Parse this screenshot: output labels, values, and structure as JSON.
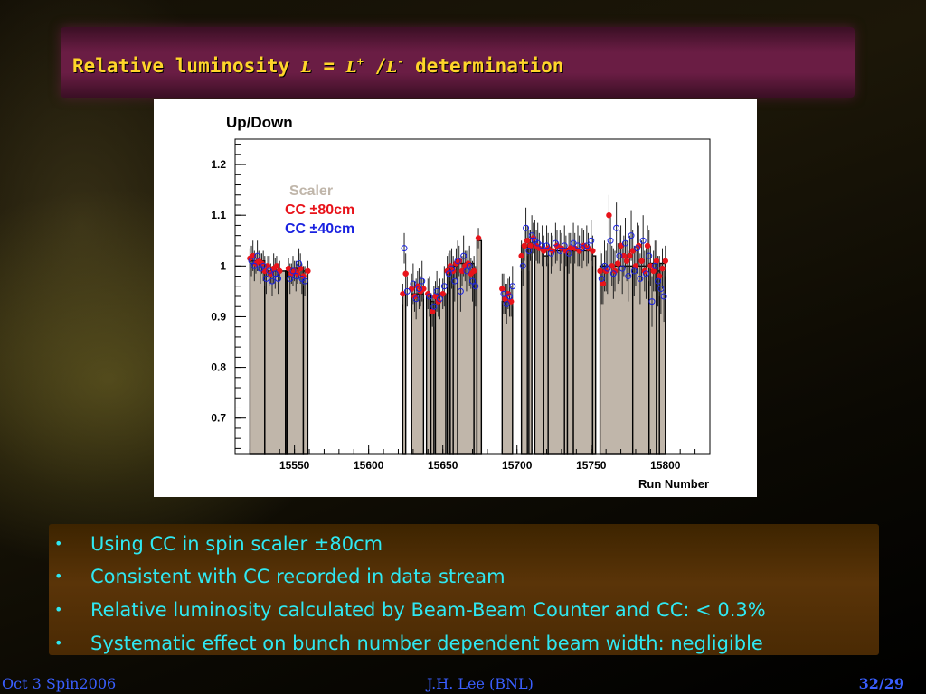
{
  "slide": {
    "title_text": "Relative luminosity ",
    "title_sym_L": "L",
    "title_eq": " = ",
    "title_sym_Lplus": "L",
    "title_plus_sup": "+",
    "title_slash": " /",
    "title_sym_Lminus": "L",
    "title_minus_sup": "-",
    "title_rest": " determination"
  },
  "bullets": [
    "Using CC in spin scaler ±80cm",
    "Consistent with CC recorded in data stream",
    "Relative luminosity calculated by Beam-Beam Counter and CC: < 0.3%",
    "Systematic effect on bunch number dependent beam width: negligible"
  ],
  "footer": {
    "left": "Oct 3 Spin2006",
    "center": "J.H. Lee (BNL)",
    "page": "32/29"
  },
  "colors": {
    "scaler": "#c0b6aa",
    "cc80": "#e8131a",
    "cc40": "#1a22e0"
  },
  "chart_data": {
    "type": "bar",
    "title": "Up/Down",
    "xlabel": "Run Number",
    "ylabel": "",
    "xlim": [
      15510,
      15830
    ],
    "ylim": [
      0.63,
      1.25
    ],
    "xticks": [
      15550,
      15600,
      15650,
      15700,
      15750,
      15800
    ],
    "yticks": [
      0.7,
      0.8,
      0.9,
      1.0,
      1.1,
      1.2
    ],
    "ytick_labels": [
      "0.7",
      "0.8",
      "0.9",
      "1",
      "1.1",
      "1.2"
    ],
    "legend": [
      {
        "label": "Scaler",
        "color": "#c0b6aa"
      },
      {
        "label": "CC ±80cm",
        "color": "#e8131a"
      },
      {
        "label": "CC ±40cm",
        "color": "#1a22e0"
      }
    ],
    "legend_position": "top-left",
    "scaler_bars": [
      {
        "x0": 15520,
        "x1": 15530,
        "value": 1.01
      },
      {
        "x0": 15530,
        "x1": 15544,
        "value": 0.99
      },
      {
        "x0": 15544,
        "x1": 15545,
        "value": 0.99
      },
      {
        "x0": 15545,
        "x1": 15556,
        "value": 0.995
      },
      {
        "x0": 15556,
        "x1": 15559,
        "value": 0.99
      },
      {
        "x0": 15623,
        "x1": 15625,
        "value": 0.945
      },
      {
        "x0": 15629,
        "x1": 15637,
        "value": 0.945
      },
      {
        "x0": 15639,
        "x1": 15642,
        "value": 0.945
      },
      {
        "x0": 15642,
        "x1": 15644,
        "value": 0.93
      },
      {
        "x0": 15645,
        "x1": 15652,
        "value": 0.945
      },
      {
        "x0": 15653,
        "x1": 15655,
        "value": 0.995
      },
      {
        "x0": 15655,
        "x1": 15657,
        "value": 1.0
      },
      {
        "x0": 15657,
        "x1": 15660,
        "value": 1.0
      },
      {
        "x0": 15660,
        "x1": 15671,
        "value": 1.005
      },
      {
        "x0": 15671,
        "x1": 15673,
        "value": 0.99
      },
      {
        "x0": 15673,
        "x1": 15676,
        "value": 1.05
      },
      {
        "x0": 15690,
        "x1": 15697,
        "value": 0.93
      },
      {
        "x0": 15703,
        "x1": 15707,
        "value": 1.04
      },
      {
        "x0": 15708,
        "x1": 15710,
        "value": 1.045
      },
      {
        "x0": 15712,
        "x1": 15718,
        "value": 1.035
      },
      {
        "x0": 15718,
        "x1": 15721,
        "value": 1.02
      },
      {
        "x0": 15721,
        "x1": 15732,
        "value": 1.03
      },
      {
        "x0": 15732,
        "x1": 15734,
        "value": 1.035
      },
      {
        "x0": 15734,
        "x1": 15738,
        "value": 1.03
      },
      {
        "x0": 15738,
        "x1": 15751,
        "value": 1.03
      },
      {
        "x0": 15751,
        "x1": 15753,
        "value": 1.02
      },
      {
        "x0": 15756,
        "x1": 15778,
        "value": 1.0
      },
      {
        "x0": 15778,
        "x1": 15789,
        "value": 1.0
      },
      {
        "x0": 15789,
        "x1": 15794,
        "value": 1.005
      },
      {
        "x0": 15794,
        "x1": 15796,
        "value": 0.99
      },
      {
        "x0": 15796,
        "x1": 15800,
        "value": 1.005
      }
    ],
    "cc_80cm": [
      {
        "x": 15520,
        "y": 1.015,
        "err": 0.02
      },
      {
        "x": 15522,
        "y": 1.02,
        "err": 0.03
      },
      {
        "x": 15524,
        "y": 1.005,
        "err": 0.02
      },
      {
        "x": 15526,
        "y": 1.01,
        "err": 0.02
      },
      {
        "x": 15528,
        "y": 1.005,
        "err": 0.02
      },
      {
        "x": 15530,
        "y": 0.99,
        "err": 0.03
      },
      {
        "x": 15532,
        "y": 1.0,
        "err": 0.02
      },
      {
        "x": 15534,
        "y": 0.985,
        "err": 0.02
      },
      {
        "x": 15536,
        "y": 0.995,
        "err": 0.03
      },
      {
        "x": 15538,
        "y": 1.0,
        "err": 0.02
      },
      {
        "x": 15540,
        "y": 0.99,
        "err": 0.02
      },
      {
        "x": 15546,
        "y": 0.995,
        "err": 0.02
      },
      {
        "x": 15548,
        "y": 0.985,
        "err": 0.02
      },
      {
        "x": 15550,
        "y": 0.99,
        "err": 0.02
      },
      {
        "x": 15552,
        "y": 0.985,
        "err": 0.02
      },
      {
        "x": 15554,
        "y": 0.995,
        "err": 0.03
      },
      {
        "x": 15556,
        "y": 0.98,
        "err": 0.02
      },
      {
        "x": 15559,
        "y": 0.99,
        "err": 0.02
      },
      {
        "x": 15623,
        "y": 0.945,
        "err": 0.02
      },
      {
        "x": 15625,
        "y": 0.985,
        "err": 0.04
      },
      {
        "x": 15629,
        "y": 0.955,
        "err": 0.03
      },
      {
        "x": 15631,
        "y": 0.94,
        "err": 0.03
      },
      {
        "x": 15633,
        "y": 0.96,
        "err": 0.03
      },
      {
        "x": 15635,
        "y": 0.95,
        "err": 0.03
      },
      {
        "x": 15637,
        "y": 0.955,
        "err": 0.02
      },
      {
        "x": 15640,
        "y": 0.945,
        "err": 0.03
      },
      {
        "x": 15643,
        "y": 0.91,
        "err": 0.03
      },
      {
        "x": 15645,
        "y": 0.94,
        "err": 0.03
      },
      {
        "x": 15647,
        "y": 0.93,
        "err": 0.03
      },
      {
        "x": 15650,
        "y": 0.945,
        "err": 0.03
      },
      {
        "x": 15653,
        "y": 0.99,
        "err": 0.03
      },
      {
        "x": 15655,
        "y": 1.0,
        "err": 0.03
      },
      {
        "x": 15657,
        "y": 0.99,
        "err": 0.03
      },
      {
        "x": 15659,
        "y": 1.005,
        "err": 0.03
      },
      {
        "x": 15661,
        "y": 1.01,
        "err": 0.03
      },
      {
        "x": 15663,
        "y": 0.99,
        "err": 0.03
      },
      {
        "x": 15665,
        "y": 1.0,
        "err": 0.03
      },
      {
        "x": 15667,
        "y": 1.005,
        "err": 0.03
      },
      {
        "x": 15669,
        "y": 0.985,
        "err": 0.03
      },
      {
        "x": 15671,
        "y": 0.99,
        "err": 0.03
      },
      {
        "x": 15674,
        "y": 1.055,
        "err": 0.02
      },
      {
        "x": 15690,
        "y": 0.955,
        "err": 0.03
      },
      {
        "x": 15692,
        "y": 0.935,
        "err": 0.03
      },
      {
        "x": 15694,
        "y": 0.945,
        "err": 0.03
      },
      {
        "x": 15696,
        "y": 0.93,
        "err": 0.03
      },
      {
        "x": 15703,
        "y": 1.02,
        "err": 0.03
      },
      {
        "x": 15705,
        "y": 1.04,
        "err": 0.03
      },
      {
        "x": 15707,
        "y": 1.05,
        "err": 0.03
      },
      {
        "x": 15709,
        "y": 1.04,
        "err": 0.03
      },
      {
        "x": 15711,
        "y": 1.055,
        "err": 0.03
      },
      {
        "x": 15713,
        "y": 1.04,
        "err": 0.03
      },
      {
        "x": 15715,
        "y": 1.035,
        "err": 0.03
      },
      {
        "x": 15718,
        "y": 1.03,
        "err": 0.03
      },
      {
        "x": 15721,
        "y": 1.035,
        "err": 0.03
      },
      {
        "x": 15724,
        "y": 1.03,
        "err": 0.03
      },
      {
        "x": 15727,
        "y": 1.04,
        "err": 0.03
      },
      {
        "x": 15730,
        "y": 1.035,
        "err": 0.03
      },
      {
        "x": 15733,
        "y": 1.03,
        "err": 0.03
      },
      {
        "x": 15736,
        "y": 1.035,
        "err": 0.03
      },
      {
        "x": 15739,
        "y": 1.035,
        "err": 0.03
      },
      {
        "x": 15742,
        "y": 1.03,
        "err": 0.03
      },
      {
        "x": 15745,
        "y": 1.04,
        "err": 0.03
      },
      {
        "x": 15748,
        "y": 1.035,
        "err": 0.03
      },
      {
        "x": 15751,
        "y": 1.03,
        "err": 0.03
      },
      {
        "x": 15756,
        "y": 0.99,
        "err": 0.04
      },
      {
        "x": 15758,
        "y": 0.965,
        "err": 0.04
      },
      {
        "x": 15760,
        "y": 0.99,
        "err": 0.04
      },
      {
        "x": 15762,
        "y": 1.1,
        "err": 0.04
      },
      {
        "x": 15764,
        "y": 1.0,
        "err": 0.04
      },
      {
        "x": 15766,
        "y": 0.99,
        "err": 0.04
      },
      {
        "x": 15768,
        "y": 1.005,
        "err": 0.04
      },
      {
        "x": 15770,
        "y": 1.04,
        "err": 0.04
      },
      {
        "x": 15772,
        "y": 1.02,
        "err": 0.04
      },
      {
        "x": 15774,
        "y": 1.01,
        "err": 0.04
      },
      {
        "x": 15776,
        "y": 1.02,
        "err": 0.04
      },
      {
        "x": 15778,
        "y": 1.03,
        "err": 0.04
      },
      {
        "x": 15780,
        "y": 1.0,
        "err": 0.04
      },
      {
        "x": 15782,
        "y": 1.04,
        "err": 0.04
      },
      {
        "x": 15784,
        "y": 1.01,
        "err": 0.04
      },
      {
        "x": 15786,
        "y": 0.99,
        "err": 0.04
      },
      {
        "x": 15788,
        "y": 1.04,
        "err": 0.04
      },
      {
        "x": 15790,
        "y": 1.0,
        "err": 0.04
      },
      {
        "x": 15792,
        "y": 0.99,
        "err": 0.04
      },
      {
        "x": 15794,
        "y": 1.01,
        "err": 0.04
      },
      {
        "x": 15796,
        "y": 0.98,
        "err": 0.04
      },
      {
        "x": 15798,
        "y": 0.995,
        "err": 0.04
      },
      {
        "x": 15800,
        "y": 1.01,
        "err": 0.03
      }
    ],
    "cc_40cm": [
      {
        "x": 15521,
        "y": 1.01,
        "err": 0.03
      },
      {
        "x": 15523,
        "y": 1.0,
        "err": 0.03
      },
      {
        "x": 15525,
        "y": 1.02,
        "err": 0.03
      },
      {
        "x": 15527,
        "y": 0.995,
        "err": 0.03
      },
      {
        "x": 15529,
        "y": 1.0,
        "err": 0.03
      },
      {
        "x": 15531,
        "y": 0.975,
        "err": 0.03
      },
      {
        "x": 15533,
        "y": 0.99,
        "err": 0.03
      },
      {
        "x": 15535,
        "y": 0.97,
        "err": 0.03
      },
      {
        "x": 15537,
        "y": 0.985,
        "err": 0.03
      },
      {
        "x": 15539,
        "y": 0.975,
        "err": 0.03
      },
      {
        "x": 15547,
        "y": 0.975,
        "err": 0.03
      },
      {
        "x": 15549,
        "y": 0.99,
        "err": 0.03
      },
      {
        "x": 15551,
        "y": 0.98,
        "err": 0.03
      },
      {
        "x": 15553,
        "y": 1.005,
        "err": 0.03
      },
      {
        "x": 15555,
        "y": 0.975,
        "err": 0.03
      },
      {
        "x": 15557,
        "y": 0.97,
        "err": 0.03
      },
      {
        "x": 15624,
        "y": 1.035,
        "err": 0.03
      },
      {
        "x": 15626,
        "y": 0.95,
        "err": 0.03
      },
      {
        "x": 15630,
        "y": 0.965,
        "err": 0.04
      },
      {
        "x": 15632,
        "y": 0.935,
        "err": 0.04
      },
      {
        "x": 15634,
        "y": 0.955,
        "err": 0.04
      },
      {
        "x": 15636,
        "y": 0.97,
        "err": 0.04
      },
      {
        "x": 15641,
        "y": 0.94,
        "err": 0.04
      },
      {
        "x": 15644,
        "y": 0.92,
        "err": 0.04
      },
      {
        "x": 15646,
        "y": 0.95,
        "err": 0.04
      },
      {
        "x": 15648,
        "y": 0.935,
        "err": 0.04
      },
      {
        "x": 15651,
        "y": 0.96,
        "err": 0.04
      },
      {
        "x": 15654,
        "y": 0.985,
        "err": 0.04
      },
      {
        "x": 15656,
        "y": 0.995,
        "err": 0.04
      },
      {
        "x": 15658,
        "y": 0.97,
        "err": 0.04
      },
      {
        "x": 15660,
        "y": 1.01,
        "err": 0.04
      },
      {
        "x": 15662,
        "y": 0.95,
        "err": 0.04
      },
      {
        "x": 15664,
        "y": 1.02,
        "err": 0.04
      },
      {
        "x": 15666,
        "y": 0.99,
        "err": 0.04
      },
      {
        "x": 15668,
        "y": 1.0,
        "err": 0.04
      },
      {
        "x": 15670,
        "y": 0.97,
        "err": 0.04
      },
      {
        "x": 15672,
        "y": 0.96,
        "err": 0.04
      },
      {
        "x": 15691,
        "y": 0.945,
        "err": 0.04
      },
      {
        "x": 15693,
        "y": 0.925,
        "err": 0.04
      },
      {
        "x": 15695,
        "y": 0.94,
        "err": 0.04
      },
      {
        "x": 15697,
        "y": 0.96,
        "err": 0.04
      },
      {
        "x": 15704,
        "y": 1.0,
        "err": 0.04
      },
      {
        "x": 15706,
        "y": 1.075,
        "err": 0.04
      },
      {
        "x": 15708,
        "y": 1.03,
        "err": 0.04
      },
      {
        "x": 15710,
        "y": 1.06,
        "err": 0.04
      },
      {
        "x": 15712,
        "y": 1.05,
        "err": 0.04
      },
      {
        "x": 15714,
        "y": 1.045,
        "err": 0.04
      },
      {
        "x": 15717,
        "y": 1.04,
        "err": 0.04
      },
      {
        "x": 15720,
        "y": 1.04,
        "err": 0.04
      },
      {
        "x": 15723,
        "y": 1.025,
        "err": 0.04
      },
      {
        "x": 15726,
        "y": 1.045,
        "err": 0.04
      },
      {
        "x": 15729,
        "y": 1.03,
        "err": 0.04
      },
      {
        "x": 15732,
        "y": 1.04,
        "err": 0.04
      },
      {
        "x": 15735,
        "y": 1.025,
        "err": 0.04
      },
      {
        "x": 15738,
        "y": 1.045,
        "err": 0.04
      },
      {
        "x": 15741,
        "y": 1.04,
        "err": 0.04
      },
      {
        "x": 15744,
        "y": 1.035,
        "err": 0.04
      },
      {
        "x": 15747,
        "y": 1.04,
        "err": 0.04
      },
      {
        "x": 15750,
        "y": 1.05,
        "err": 0.04
      },
      {
        "x": 15757,
        "y": 0.975,
        "err": 0.05
      },
      {
        "x": 15759,
        "y": 1.0,
        "err": 0.05
      },
      {
        "x": 15761,
        "y": 0.995,
        "err": 0.05
      },
      {
        "x": 15763,
        "y": 1.05,
        "err": 0.05
      },
      {
        "x": 15765,
        "y": 0.985,
        "err": 0.05
      },
      {
        "x": 15767,
        "y": 1.075,
        "err": 0.05
      },
      {
        "x": 15769,
        "y": 1.02,
        "err": 0.05
      },
      {
        "x": 15771,
        "y": 0.995,
        "err": 0.05
      },
      {
        "x": 15773,
        "y": 1.045,
        "err": 0.05
      },
      {
        "x": 15775,
        "y": 0.98,
        "err": 0.05
      },
      {
        "x": 15777,
        "y": 1.06,
        "err": 0.05
      },
      {
        "x": 15779,
        "y": 0.99,
        "err": 0.05
      },
      {
        "x": 15781,
        "y": 1.035,
        "err": 0.05
      },
      {
        "x": 15783,
        "y": 0.975,
        "err": 0.05
      },
      {
        "x": 15785,
        "y": 1.05,
        "err": 0.05
      },
      {
        "x": 15787,
        "y": 0.985,
        "err": 0.05
      },
      {
        "x": 15789,
        "y": 1.02,
        "err": 0.05
      },
      {
        "x": 15791,
        "y": 0.93,
        "err": 0.05
      },
      {
        "x": 15793,
        "y": 1.0,
        "err": 0.05
      },
      {
        "x": 15795,
        "y": 0.97,
        "err": 0.05
      },
      {
        "x": 15797,
        "y": 0.955,
        "err": 0.05
      },
      {
        "x": 15799,
        "y": 0.94,
        "err": 0.05
      }
    ]
  }
}
